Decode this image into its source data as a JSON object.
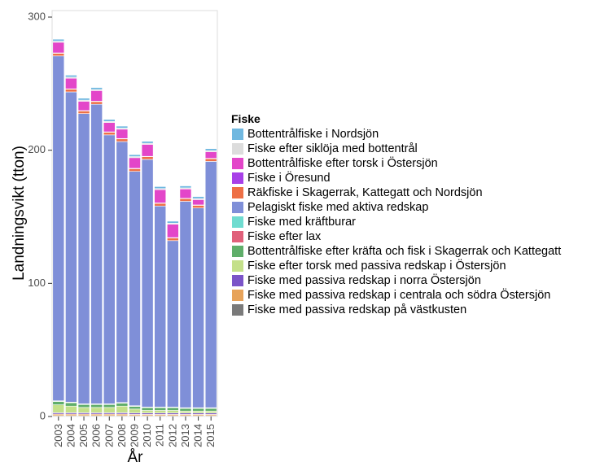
{
  "chart_data": {
    "type": "bar",
    "stacked": true,
    "ylabel": "Landningsvikt (tton)",
    "xlabel": "År",
    "ylim": [
      0,
      300
    ],
    "yticks": [
      0,
      100,
      200,
      300
    ],
    "categories": [
      "2003",
      "2004",
      "2005",
      "2006",
      "2007",
      "2008",
      "2009",
      "2010",
      "2011",
      "2012",
      "2013",
      "2014",
      "2015"
    ],
    "legend_title": "Fiske",
    "legend_placement": "right",
    "grid": false,
    "series": [
      {
        "name": "Fiske med passiva redskap på västkusten",
        "color": "#7a7a7a",
        "values": [
          0.6,
          0.6,
          0.6,
          0.6,
          0.6,
          0.6,
          0.6,
          0.6,
          0.6,
          0.6,
          0.6,
          0.6,
          0.6
        ]
      },
      {
        "name": "Fiske med passiva redskap i centrala och södra Östersjön",
        "color": "#e7a35a",
        "values": [
          1.2,
          1.2,
          1.2,
          1.2,
          1.2,
          1.2,
          1.0,
          1.0,
          1.0,
          1.0,
          1.0,
          1.0,
          1.0
        ]
      },
      {
        "name": "Fiske med passiva redskap i norra Östersjön",
        "color": "#7b54c8",
        "values": [
          1.0,
          1.0,
          1.0,
          1.0,
          1.0,
          1.0,
          1.0,
          1.0,
          1.0,
          1.0,
          1.0,
          1.0,
          1.0
        ]
      },
      {
        "name": "Fiske efter torsk med passiva redskap i Östersjön",
        "color": "#c4e08a",
        "values": [
          6,
          5,
          4,
          4,
          4,
          5,
          3,
          2,
          2,
          2,
          1.5,
          1.5,
          1.5
        ]
      },
      {
        "name": "Bottentrålfiske efter kräfta och fisk i Skagerrak och Kattegatt",
        "color": "#5fae6a",
        "values": [
          2.5,
          2.5,
          2.2,
          2.2,
          2.2,
          2.2,
          2.0,
          2.0,
          2.0,
          2.0,
          2.0,
          2.0,
          2.0
        ]
      },
      {
        "name": "Fiske efter lax",
        "color": "#e0607a",
        "values": [
          0.2,
          0.2,
          0.2,
          0.2,
          0.2,
          0.2,
          0.2,
          0.2,
          0.2,
          0.2,
          0.2,
          0.2,
          0.2
        ]
      },
      {
        "name": "Fiske med kräftburar",
        "color": "#6fdcd0",
        "values": [
          0.3,
          0.3,
          0.3,
          0.3,
          0.3,
          0.3,
          0.3,
          0.3,
          0.3,
          0.3,
          0.3,
          0.3,
          0.3
        ]
      },
      {
        "name": "Pelagiskt fiske med aktiva redskap",
        "color": "#7f8fd8",
        "values": [
          259,
          233,
          218,
          225,
          202,
          196,
          176,
          186,
          151,
          125,
          155,
          150,
          185
        ]
      },
      {
        "name": "Räkfiske i Skagerrak, Kattegatt och Nordsjön",
        "color": "#ee7046",
        "values": [
          2.0,
          2.0,
          2.0,
          2.0,
          2.0,
          2.0,
          2.0,
          2.0,
          2.0,
          2.0,
          2.0,
          2.0,
          2.0
        ]
      },
      {
        "name": "Fiske i Öresund",
        "color": "#a840e8",
        "values": [
          0.3,
          0.3,
          0.3,
          0.3,
          0.3,
          0.3,
          0.3,
          0.3,
          0.3,
          0.3,
          0.3,
          0.3,
          0.3
        ]
      },
      {
        "name": "Bottentrålfiske efter torsk i Östersjön",
        "color": "#e346c9",
        "values": [
          8,
          8,
          7,
          8,
          7,
          7,
          8,
          9,
          10,
          10,
          7,
          4,
          5
        ]
      },
      {
        "name": "Fiske efter siklöja med bottentrål",
        "color": "#dcdcdc",
        "values": [
          0.8,
          0.8,
          0.8,
          0.8,
          0.8,
          0.8,
          0.8,
          0.8,
          0.8,
          0.8,
          0.8,
          0.8,
          0.8
        ]
      },
      {
        "name": "Bottentrålfiske  i Nordsjön",
        "color": "#70b8e0",
        "values": [
          1.5,
          1.5,
          1.5,
          1.5,
          1.5,
          1.5,
          1.5,
          1.5,
          1.5,
          1.5,
          1.5,
          1.5,
          1.5
        ]
      }
    ]
  },
  "legend_order": [
    "Bottentrålfiske  i Nordsjön",
    "Fiske efter siklöja med bottentrål",
    "Bottentrålfiske efter torsk i Östersjön",
    "Fiske i Öresund",
    "Räkfiske i Skagerrak, Kattegatt och Nordsjön",
    "Pelagiskt fiske med aktiva redskap",
    "Fiske med kräftburar",
    "Fiske efter lax",
    "Bottentrålfiske efter kräfta och fisk i Skagerrak och Kattegatt",
    "Fiske efter torsk med passiva redskap i Östersjön",
    "Fiske med passiva redskap i norra Östersjön",
    "Fiske med passiva redskap i centrala och södra Östersjön",
    "Fiske med passiva redskap på västkusten"
  ]
}
